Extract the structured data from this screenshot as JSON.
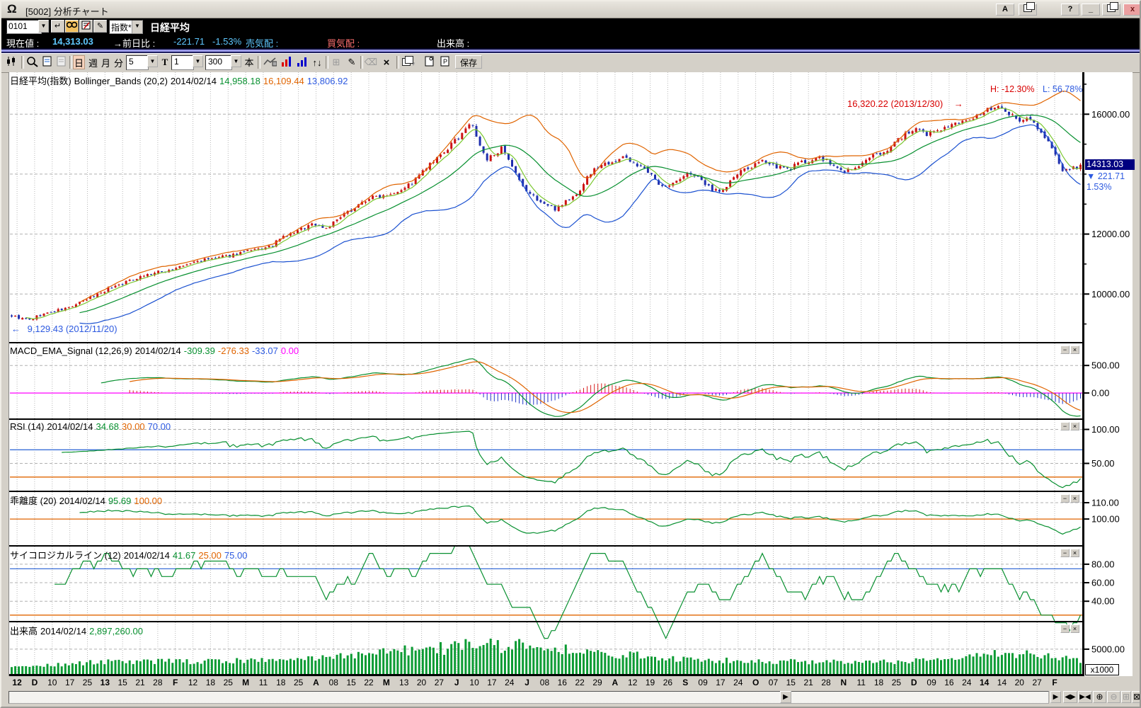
{
  "window": {
    "title": "[5002] 分析チャート",
    "logo_glyph": "Ω",
    "buttons": {
      "a": "A",
      "help": "?",
      "min": "_",
      "close": "x"
    }
  },
  "icons": {
    "dropdown": "▼",
    "enter": "↵",
    "pencil": "✎",
    "updown": "↑↓",
    "grid": "⊞",
    "clear": "×",
    "eraser": "⌫"
  },
  "quote": {
    "code": "0101",
    "category": "指数*",
    "name": "日経平均",
    "label_current": "現在値 :",
    "current": "14,313.03",
    "label_prev": "→前日比 :",
    "change": "-221.71",
    "change_pct": "-1.53%",
    "label_sell": "売気配 :",
    "label_buy": "買気配 :",
    "label_volume": "出来高 :"
  },
  "toolbar": {
    "periods": [
      "日",
      "週",
      "月",
      "分"
    ],
    "sel_interval": "5",
    "t_label": "T",
    "sel_num": "1",
    "sel_bars": "300",
    "unit": "本",
    "save": "保存"
  },
  "panel_controls": {
    "minimize": "−",
    "close": "×"
  },
  "panels": {
    "main": {
      "header": {
        "name": "日経平均(指数)",
        "ind": "Bollinger_Bands (20,2)",
        "date": "2014/02/14",
        "v1": "14,958.18",
        "v2": "16,109.44",
        "v3": "13,806.92"
      },
      "annotations": {
        "peak": "16,320.22 (2013/12/30)",
        "peak_arrow": "→",
        "high_pct": "H: -12.30%",
        "low_pct": "L: 56.78%",
        "low": "9,129.43 (2012/11/20)",
        "low_arrow": "←"
      },
      "price_marker": {
        "price": "14313.03",
        "change": "▼ 221.71",
        "pct": "1.53%"
      }
    },
    "macd": {
      "header": {
        "name": "MACD_EMA_Signal (12,26,9)",
        "date": "2014/02/14",
        "v1": "-309.39",
        "v2": "-276.33",
        "v3": "-33.07",
        "v4": "0.00"
      }
    },
    "rsi": {
      "header": {
        "name": "RSI (14)",
        "date": "2014/02/14",
        "v1": "34.68",
        "v2": "30.00",
        "v3": "70.00"
      }
    },
    "kairi": {
      "header": {
        "name": "乖離度 (20)",
        "date": "2014/02/14",
        "v1": "95.69",
        "v2": "100.00"
      }
    },
    "psych": {
      "header": {
        "name": "サイコロジカルライン (12)",
        "date": "2014/02/14",
        "v1": "41.67",
        "v2": "25.00",
        "v3": "75.00"
      }
    },
    "vol": {
      "header": {
        "name": "出来高",
        "date": "2014/02/14",
        "v1": "2,897,260.00"
      },
      "unit": "x1000"
    }
  },
  "xaxis": {
    "labels": [
      {
        "t": "12",
        "b": true
      },
      {
        "t": "D",
        "b": true
      },
      {
        "t": "10",
        "b": false
      },
      {
        "t": "17",
        "b": false
      },
      {
        "t": "25",
        "b": false
      },
      {
        "t": "13",
        "b": true
      },
      {
        "t": "15",
        "b": false
      },
      {
        "t": "21",
        "b": false
      },
      {
        "t": "28",
        "b": false
      },
      {
        "t": "F",
        "b": true
      },
      {
        "t": "12",
        "b": false
      },
      {
        "t": "18",
        "b": false
      },
      {
        "t": "25",
        "b": false
      },
      {
        "t": "M",
        "b": true
      },
      {
        "t": "11",
        "b": false
      },
      {
        "t": "18",
        "b": false
      },
      {
        "t": "25",
        "b": false
      },
      {
        "t": "A",
        "b": true
      },
      {
        "t": "08",
        "b": false
      },
      {
        "t": "15",
        "b": false
      },
      {
        "t": "22",
        "b": false
      },
      {
        "t": "M",
        "b": true
      },
      {
        "t": "13",
        "b": false
      },
      {
        "t": "20",
        "b": false
      },
      {
        "t": "27",
        "b": false
      },
      {
        "t": "J",
        "b": true
      },
      {
        "t": "10",
        "b": false
      },
      {
        "t": "17",
        "b": false
      },
      {
        "t": "24",
        "b": false
      },
      {
        "t": "J",
        "b": true
      },
      {
        "t": "08",
        "b": false
      },
      {
        "t": "16",
        "b": false
      },
      {
        "t": "22",
        "b": false
      },
      {
        "t": "29",
        "b": false
      },
      {
        "t": "A",
        "b": true
      },
      {
        "t": "12",
        "b": false
      },
      {
        "t": "19",
        "b": false
      },
      {
        "t": "26",
        "b": false
      },
      {
        "t": "S",
        "b": true
      },
      {
        "t": "09",
        "b": false
      },
      {
        "t": "17",
        "b": false
      },
      {
        "t": "24",
        "b": false
      },
      {
        "t": "O",
        "b": true
      },
      {
        "t": "07",
        "b": false
      },
      {
        "t": "15",
        "b": false
      },
      {
        "t": "21",
        "b": false
      },
      {
        "t": "28",
        "b": false
      },
      {
        "t": "N",
        "b": true
      },
      {
        "t": "11",
        "b": false
      },
      {
        "t": "18",
        "b": false
      },
      {
        "t": "25",
        "b": false
      },
      {
        "t": "D",
        "b": true
      },
      {
        "t": "09",
        "b": false
      },
      {
        "t": "16",
        "b": false
      },
      {
        "t": "24",
        "b": false
      },
      {
        "t": "14",
        "b": true
      },
      {
        "t": "14",
        "b": false
      },
      {
        "t": "20",
        "b": false
      },
      {
        "t": "27",
        "b": false
      },
      {
        "t": "F",
        "b": true
      }
    ]
  },
  "scrollbar": {
    "thumb": "▶",
    "zoom_out_bars": "◀▶",
    "zoom_in_bars": "▶◀",
    "zoom_in": "⊕",
    "zoom_out": "⊖",
    "grid": "⊞",
    "close": "⊠"
  },
  "chart_data": {
    "type": "candlestick-multi-panel",
    "bars": 300,
    "seed": 9,
    "last_close": 14313.03,
    "date_range": [
      "2012/11/12",
      "2014/02/14"
    ],
    "price_keypoints": [
      [
        0,
        9280
      ],
      [
        3,
        9170
      ],
      [
        5,
        9130
      ],
      [
        8,
        9300
      ],
      [
        12,
        9420
      ],
      [
        16,
        9550
      ],
      [
        20,
        9750
      ],
      [
        24,
        10000
      ],
      [
        28,
        10230
      ],
      [
        32,
        10400
      ],
      [
        36,
        10600
      ],
      [
        40,
        10700
      ],
      [
        44,
        10800
      ],
      [
        48,
        10930
      ],
      [
        52,
        11100
      ],
      [
        56,
        11170
      ],
      [
        60,
        11250
      ],
      [
        64,
        11380
      ],
      [
        68,
        11450
      ],
      [
        72,
        11560
      ],
      [
        76,
        11900
      ],
      [
        80,
        12100
      ],
      [
        84,
        12350
      ],
      [
        88,
        12200
      ],
      [
        92,
        12550
      ],
      [
        96,
        12900
      ],
      [
        100,
        13200
      ],
      [
        104,
        13300
      ],
      [
        108,
        13450
      ],
      [
        112,
        13700
      ],
      [
        116,
        14200
      ],
      [
        120,
        14600
      ],
      [
        124,
        15100
      ],
      [
        127,
        15550
      ],
      [
        129,
        15630
      ],
      [
        131,
        14900
      ],
      [
        133,
        14450
      ],
      [
        135,
        14700
      ],
      [
        137,
        14850
      ],
      [
        140,
        14200
      ],
      [
        143,
        13550
      ],
      [
        146,
        13250
      ],
      [
        149,
        13000
      ],
      [
        152,
        12850
      ],
      [
        155,
        13100
      ],
      [
        158,
        13300
      ],
      [
        161,
        13900
      ],
      [
        164,
        14250
      ],
      [
        168,
        14450
      ],
      [
        172,
        14550
      ],
      [
        175,
        14300
      ],
      [
        178,
        14050
      ],
      [
        181,
        13700
      ],
      [
        184,
        13600
      ],
      [
        187,
        13850
      ],
      [
        190,
        14050
      ],
      [
        193,
        13750
      ],
      [
        196,
        13500
      ],
      [
        199,
        13450
      ],
      [
        202,
        13900
      ],
      [
        205,
        14150
      ],
      [
        208,
        14300
      ],
      [
        211,
        14450
      ],
      [
        214,
        14250
      ],
      [
        217,
        14150
      ],
      [
        220,
        14350
      ],
      [
        223,
        14450
      ],
      [
        226,
        14550
      ],
      [
        229,
        14350
      ],
      [
        232,
        14100
      ],
      [
        235,
        14150
      ],
      [
        238,
        14350
      ],
      [
        241,
        14600
      ],
      [
        244,
        14750
      ],
      [
        247,
        15050
      ],
      [
        250,
        15350
      ],
      [
        253,
        15450
      ],
      [
        256,
        15300
      ],
      [
        259,
        15500
      ],
      [
        262,
        15600
      ],
      [
        265,
        15680
      ],
      [
        268,
        15850
      ],
      [
        271,
        16000
      ],
      [
        274,
        16200
      ],
      [
        276,
        16290
      ],
      [
        278,
        16150
      ],
      [
        280,
        15950
      ],
      [
        282,
        15750
      ],
      [
        284,
        15850
      ],
      [
        286,
        15700
      ],
      [
        288,
        15400
      ],
      [
        290,
        15100
      ],
      [
        292,
        14600
      ],
      [
        294,
        14050
      ],
      [
        296,
        14150
      ],
      [
        298,
        14250
      ],
      [
        299,
        14310
      ]
    ],
    "volume": {
      "base": 2300,
      "noise": 1100,
      "humps": [
        {
          "c": 133,
          "s": 30,
          "a": 3200
        },
        {
          "c": 278,
          "s": 12,
          "a": 1600
        }
      ]
    },
    "panels": {
      "main": {
        "ylim": [
          8400,
          17400
        ],
        "yticks": [
          {
            "v": 16000,
            "l": "16000.00"
          },
          {
            "v": 12000,
            "l": "12000.00"
          },
          {
            "v": 10000,
            "l": "10000.00"
          }
        ],
        "minor": [
          17000,
          15000,
          14000,
          13000,
          11000,
          9000
        ],
        "gridv": [
          16000,
          14000,
          12000,
          10000
        ]
      },
      "macd": {
        "ylim": [
          -460,
          900
        ],
        "yticks": [
          {
            "v": 500,
            "l": "500.00"
          },
          {
            "v": 0,
            "l": "0.00"
          }
        ],
        "gridv": [
          500
        ],
        "zero": 0
      },
      "rsi": {
        "ylim": [
          10,
          114
        ],
        "yticks": [
          {
            "v": 100,
            "l": "100.00"
          },
          {
            "v": 50,
            "l": "50.00"
          }
        ],
        "gridv": [
          100,
          50
        ],
        "refs": [
          {
            "v": 70,
            "c": "blue"
          },
          {
            "v": 30,
            "c": "orange"
          }
        ]
      },
      "kairi": {
        "ylim": [
          84,
          116.5
        ],
        "yticks": [
          {
            "v": 110,
            "l": "110.00"
          },
          {
            "v": 100,
            "l": "100.00"
          }
        ],
        "gridv": [
          110
        ],
        "refs": [
          {
            "v": 100,
            "c": "orange"
          }
        ]
      },
      "psych": {
        "ylim": [
          18,
          99
        ],
        "yticks": [
          {
            "v": 80,
            "l": "80.00"
          },
          {
            "v": 60,
            "l": "60.00"
          },
          {
            "v": 40,
            "l": "40.00"
          }
        ],
        "gridv": [
          80,
          60,
          40
        ],
        "refs": [
          {
            "v": 75,
            "c": "blue"
          },
          {
            "v": 25,
            "c": "orange"
          }
        ]
      },
      "vol": {
        "ylim": [
          0,
          10400
        ],
        "yticks": [
          {
            "v": 5000,
            "l": "5000.00"
          }
        ],
        "gridv": [
          5000
        ]
      }
    },
    "colors": {
      "up": "#cc1414",
      "down": "#1f2fae",
      "band_mid": "#089030",
      "band_up": "#e06400",
      "band_low": "#1a50d0",
      "sma5": "#7cc832",
      "macd": "#089030",
      "signal": "#e06400",
      "zero": "#ff00ff",
      "hist_pos": "#d82020",
      "hist_neg": "#2236c8",
      "line": "#089030",
      "ref_blue": "#3a6fd8",
      "ref_orange": "#e06400",
      "vol": "#0b9b33",
      "grid": "#b8b8b8"
    }
  }
}
